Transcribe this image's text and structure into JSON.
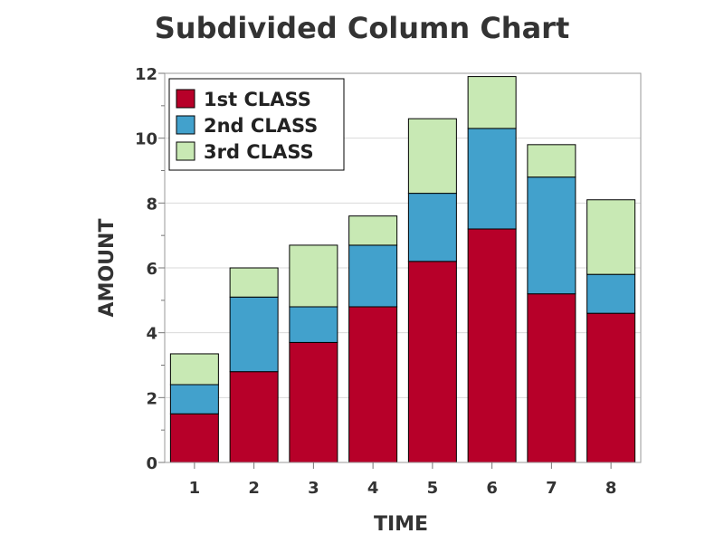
{
  "chart_data": {
    "type": "bar",
    "stacked": true,
    "title": "Subdivided Column Chart",
    "xlabel": "TIME",
    "ylabel": "AMOUNT",
    "categories": [
      "1",
      "2",
      "3",
      "4",
      "5",
      "6",
      "7",
      "8"
    ],
    "ylim": [
      0,
      12
    ],
    "yticks": [
      "0",
      "2",
      "4",
      "6",
      "8",
      "10",
      "12"
    ],
    "grid": true,
    "legend_position": "top-left",
    "series": [
      {
        "name": "1st CLASS",
        "color": "#b70029",
        "values": [
          1.5,
          2.8,
          3.7,
          4.8,
          6.2,
          7.2,
          5.2,
          4.6
        ]
      },
      {
        "name": "2nd CLASS",
        "color": "#42a1cc",
        "values": [
          0.9,
          2.3,
          1.1,
          1.9,
          2.1,
          3.1,
          3.6,
          1.2
        ]
      },
      {
        "name": "3rd CLASS",
        "color": "#c8e9b4",
        "values": [
          0.95,
          0.9,
          1.9,
          0.9,
          2.3,
          1.6,
          1.0,
          2.3
        ]
      }
    ]
  }
}
